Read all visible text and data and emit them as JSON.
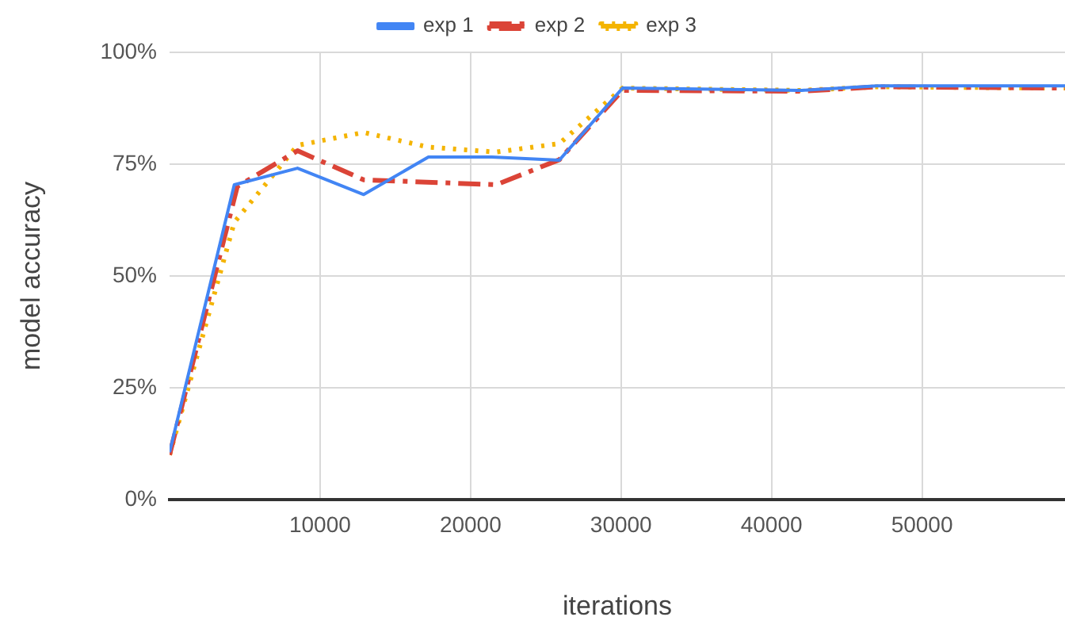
{
  "chart_data": {
    "type": "line",
    "xlabel": "iterations",
    "ylabel": "model accuracy",
    "xlim": [
      0,
      59500
    ],
    "xticks": [
      10000,
      20000,
      30000,
      40000,
      50000
    ],
    "ylim": [
      0,
      100
    ],
    "yticks": [
      {
        "value": 0,
        "label": "0%"
      },
      {
        "value": 25,
        "label": "25%"
      },
      {
        "value": 50,
        "label": "50%"
      },
      {
        "value": 75,
        "label": "75%"
      },
      {
        "value": 100,
        "label": "100%"
      }
    ],
    "grid": true,
    "legend": "top",
    "marker": "none",
    "series": [
      {
        "name": "exp 1",
        "color": "#4285f4",
        "line_style": "solid",
        "x": [
          0,
          4300,
          8500,
          12900,
          17200,
          21400,
          25900,
          30100,
          42000,
          47000,
          59500
        ],
        "values": [
          10.6,
          70.4,
          74.1,
          68.2,
          76.6,
          76.6,
          75.9,
          92,
          91.5,
          92.5,
          92.5
        ]
      },
      {
        "name": "exp 2",
        "color": "#db4437",
        "line_style": "dashed",
        "x": [
          0,
          4500,
          8500,
          12900,
          21700,
          25900,
          30100,
          42000,
          47000,
          59500
        ],
        "values": [
          10,
          70,
          78,
          71.5,
          70.4,
          76,
          91.5,
          91.3,
          92.3,
          92
        ]
      },
      {
        "name": "exp 3",
        "color": "#f4b400",
        "line_style": "dotted",
        "x": [
          0,
          4300,
          8500,
          12900,
          17200,
          21700,
          25900,
          30100,
          42000,
          47000,
          59500
        ],
        "values": [
          10,
          62,
          79.2,
          82.1,
          78.8,
          77.7,
          79.6,
          92,
          91.5,
          92.3,
          92
        ]
      }
    ]
  }
}
